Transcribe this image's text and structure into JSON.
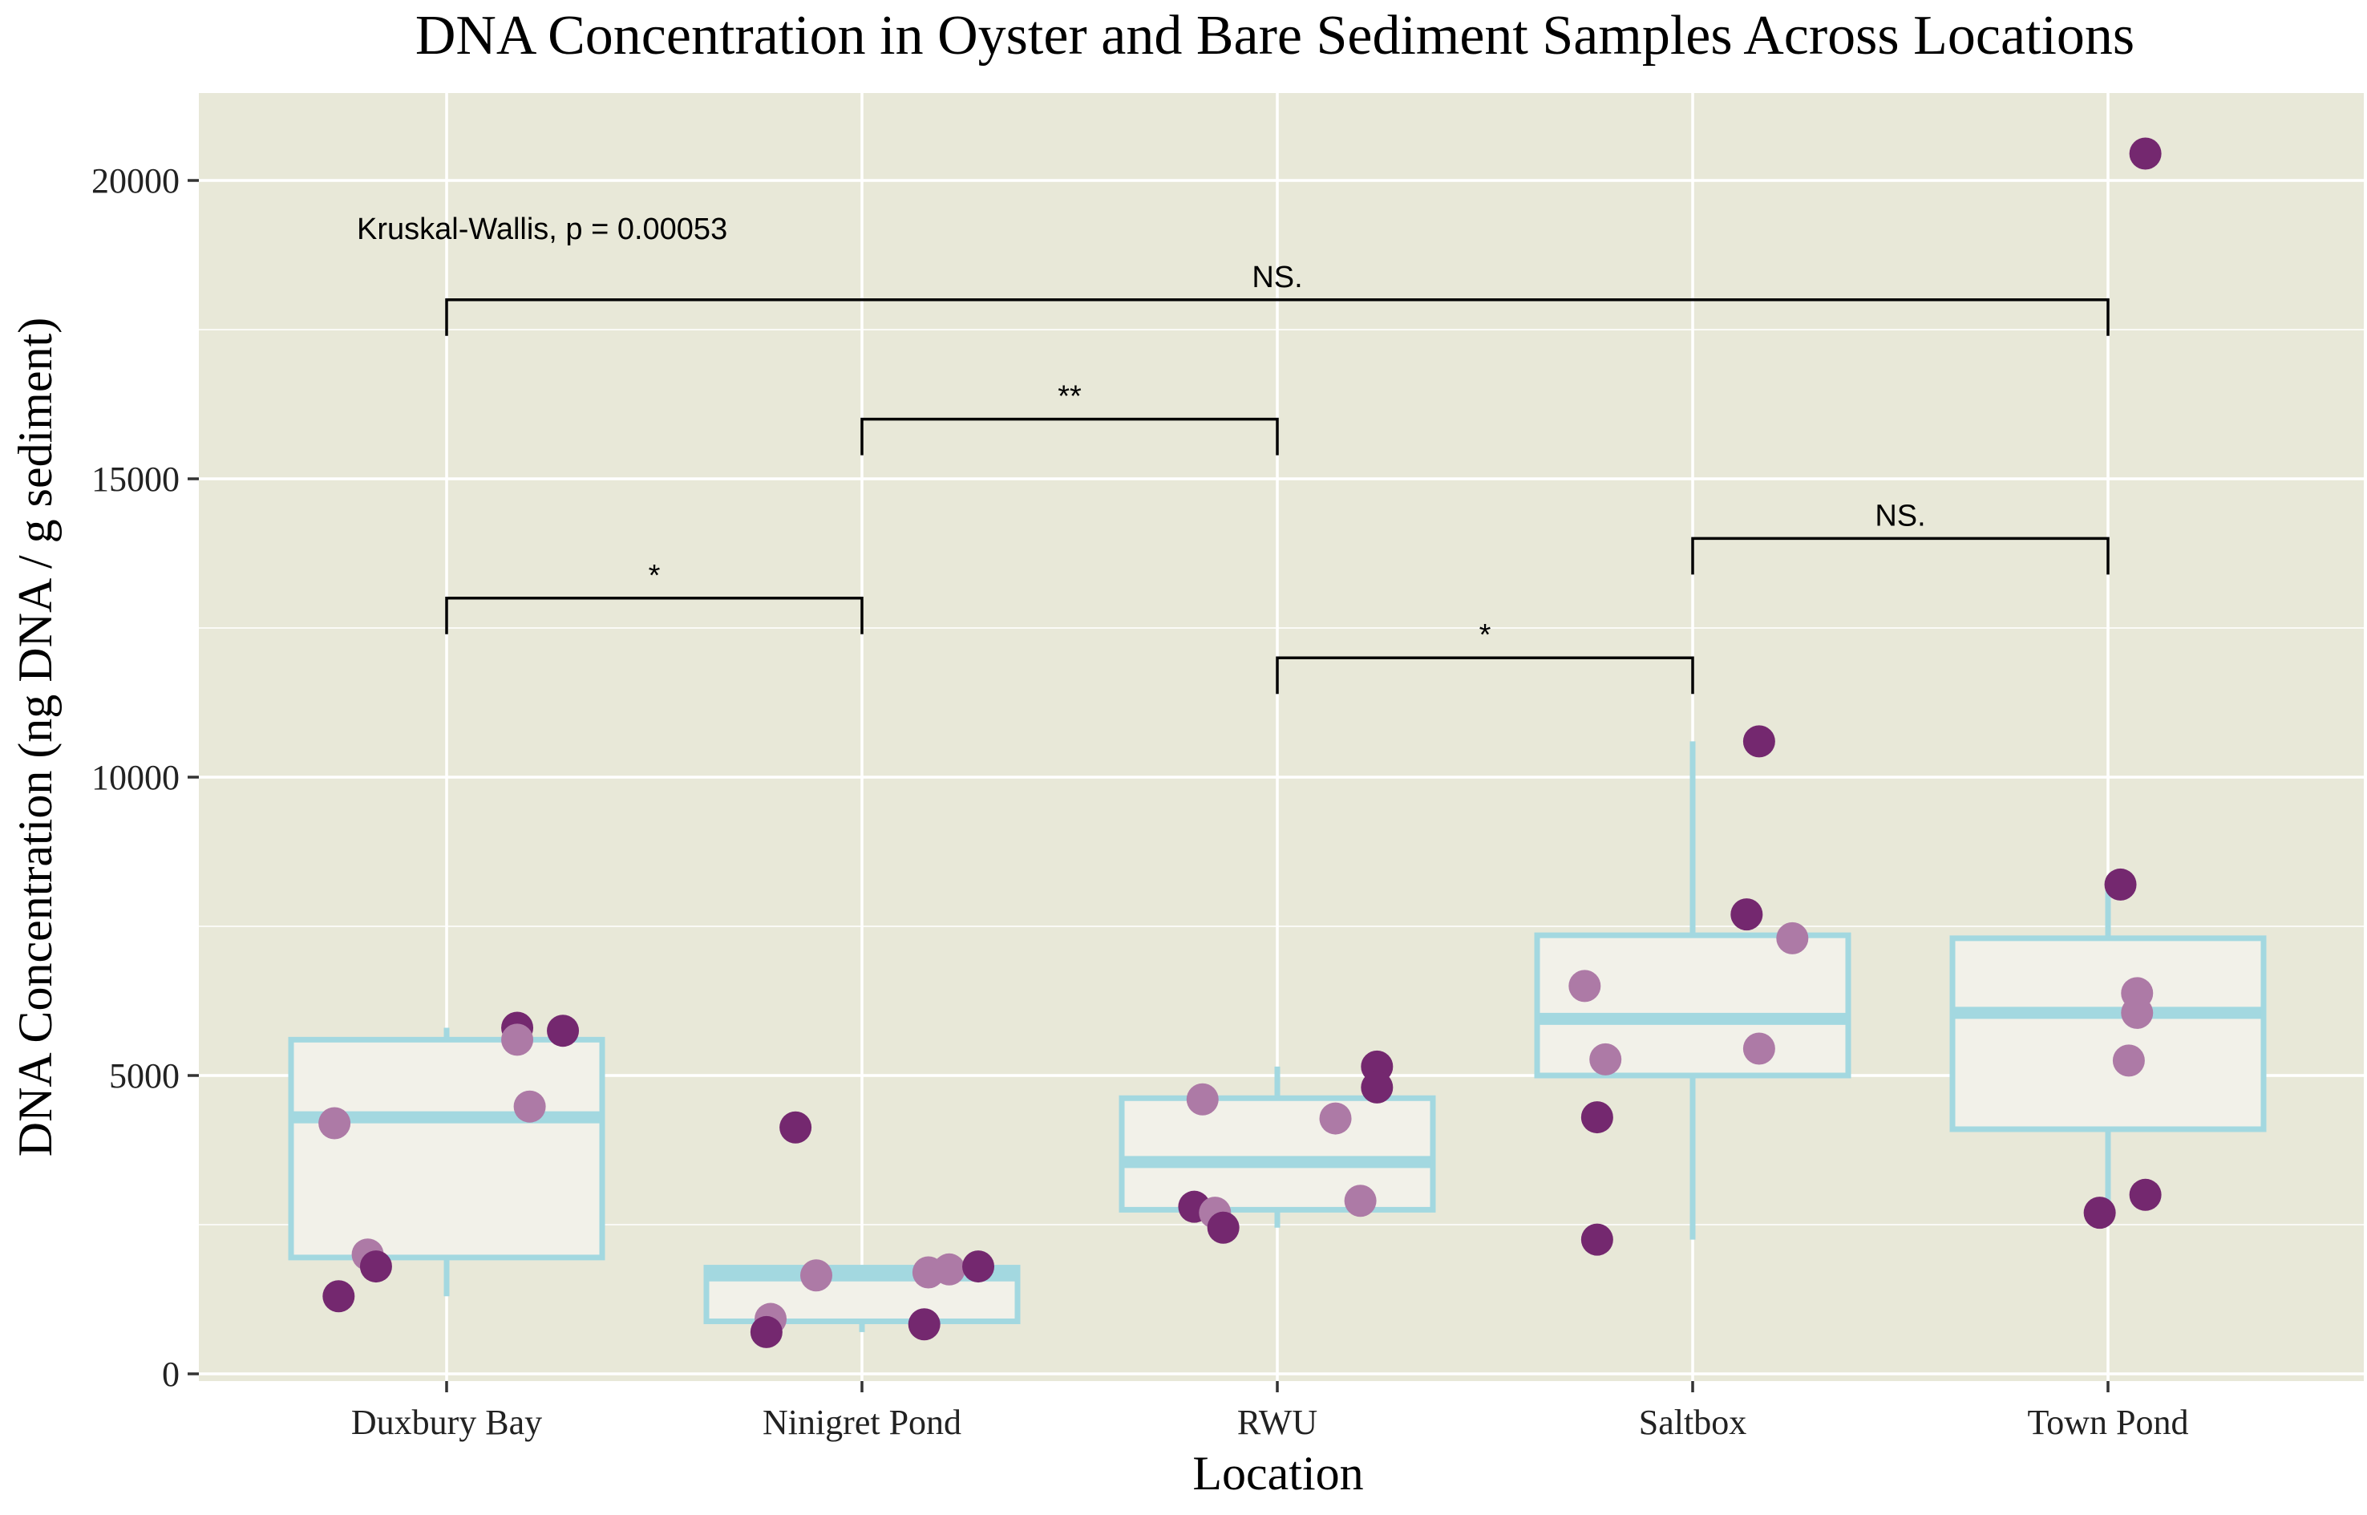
{
  "chart_data": {
    "type": "box",
    "title": "DNA Concentration in Oyster and Bare Sediment Samples Across Locations",
    "xlabel": "Location",
    "ylabel": "DNA Concentration (ng DNA / g sediment)",
    "categories": [
      "Duxbury Bay",
      "Ninigret Pond",
      "RWU",
      "Saltbox",
      "Town Pond"
    ],
    "ylim": [
      -150,
      21500
    ],
    "yticks": [
      0,
      5000,
      10000,
      15000,
      20000
    ],
    "grid": true,
    "legend": "none",
    "boxes": [
      {
        "category": "Duxbury Bay",
        "whisker_low": 1300,
        "q1": 1950,
        "median": 4300,
        "q3": 5600,
        "whisker_high": 5800
      },
      {
        "category": "Ninigret Pond",
        "whisker_low": 700,
        "q1": 880,
        "median": 1650,
        "q3": 1780,
        "whisker_high": 1820
      },
      {
        "category": "RWU",
        "whisker_low": 2450,
        "q1": 2750,
        "median": 3550,
        "q3": 4620,
        "whisker_high": 5150
      },
      {
        "category": "Saltbox",
        "whisker_low": 2250,
        "q1": 5000,
        "median": 5950,
        "q3": 7350,
        "whisker_high": 10600
      },
      {
        "category": "Town Pond",
        "whisker_low": 2700,
        "q1": 4100,
        "median": 6050,
        "q3": 7300,
        "whisker_high": 8200
      }
    ],
    "points": [
      {
        "category": "Duxbury Bay",
        "dx": -0.27,
        "y": 4200,
        "kind": "light"
      },
      {
        "category": "Duxbury Bay",
        "dx": -0.19,
        "y": 2000,
        "kind": "light"
      },
      {
        "category": "Duxbury Bay",
        "dx": -0.17,
        "y": 1800,
        "kind": "dark"
      },
      {
        "category": "Duxbury Bay",
        "dx": -0.26,
        "y": 1300,
        "kind": "dark"
      },
      {
        "category": "Duxbury Bay",
        "dx": 0.17,
        "y": 5800,
        "kind": "dark"
      },
      {
        "category": "Duxbury Bay",
        "dx": 0.17,
        "y": 5600,
        "kind": "light"
      },
      {
        "category": "Duxbury Bay",
        "dx": 0.28,
        "y": 5750,
        "kind": "dark"
      },
      {
        "category": "Duxbury Bay",
        "dx": 0.2,
        "y": 4480,
        "kind": "light"
      },
      {
        "category": "Ninigret Pond",
        "dx": -0.16,
        "y": 4130,
        "kind": "dark"
      },
      {
        "category": "Ninigret Pond",
        "dx": -0.11,
        "y": 1650,
        "kind": "light"
      },
      {
        "category": "Ninigret Pond",
        "dx": -0.22,
        "y": 920,
        "kind": "light"
      },
      {
        "category": "Ninigret Pond",
        "dx": -0.23,
        "y": 700,
        "kind": "dark"
      },
      {
        "category": "Ninigret Pond",
        "dx": 0.16,
        "y": 1700,
        "kind": "light"
      },
      {
        "category": "Ninigret Pond",
        "dx": 0.21,
        "y": 1750,
        "kind": "light"
      },
      {
        "category": "Ninigret Pond",
        "dx": 0.28,
        "y": 1800,
        "kind": "dark"
      },
      {
        "category": "Ninigret Pond",
        "dx": 0.15,
        "y": 830,
        "kind": "dark"
      },
      {
        "category": "RWU",
        "dx": -0.18,
        "y": 4600,
        "kind": "light"
      },
      {
        "category": "RWU",
        "dx": -0.2,
        "y": 2800,
        "kind": "dark"
      },
      {
        "category": "RWU",
        "dx": -0.15,
        "y": 2700,
        "kind": "light"
      },
      {
        "category": "RWU",
        "dx": -0.13,
        "y": 2450,
        "kind": "dark"
      },
      {
        "category": "RWU",
        "dx": 0.14,
        "y": 4280,
        "kind": "light"
      },
      {
        "category": "RWU",
        "dx": 0.24,
        "y": 5150,
        "kind": "dark"
      },
      {
        "category": "RWU",
        "dx": 0.24,
        "y": 4800,
        "kind": "dark"
      },
      {
        "category": "RWU",
        "dx": 0.2,
        "y": 2900,
        "kind": "light"
      },
      {
        "category": "Saltbox",
        "dx": -0.26,
        "y": 6500,
        "kind": "light"
      },
      {
        "category": "Saltbox",
        "dx": -0.21,
        "y": 5270,
        "kind": "light"
      },
      {
        "category": "Saltbox",
        "dx": -0.23,
        "y": 4300,
        "kind": "dark"
      },
      {
        "category": "Saltbox",
        "dx": -0.23,
        "y": 2250,
        "kind": "dark"
      },
      {
        "category": "Saltbox",
        "dx": 0.16,
        "y": 10600,
        "kind": "dark"
      },
      {
        "category": "Saltbox",
        "dx": 0.13,
        "y": 7700,
        "kind": "dark"
      },
      {
        "category": "Saltbox",
        "dx": 0.24,
        "y": 7300,
        "kind": "light"
      },
      {
        "category": "Saltbox",
        "dx": 0.16,
        "y": 5450,
        "kind": "light"
      },
      {
        "category": "Town Pond",
        "dx": 0.03,
        "y": 8200,
        "kind": "dark"
      },
      {
        "category": "Town Pond",
        "dx": 0.09,
        "y": 20450,
        "kind": "dark"
      },
      {
        "category": "Town Pond",
        "dx": 0.07,
        "y": 6380,
        "kind": "light"
      },
      {
        "category": "Town Pond",
        "dx": 0.07,
        "y": 6050,
        "kind": "light"
      },
      {
        "category": "Town Pond",
        "dx": 0.05,
        "y": 5250,
        "kind": "light"
      },
      {
        "category": "Town Pond",
        "dx": -0.02,
        "y": 2700,
        "kind": "dark"
      },
      {
        "category": "Town Pond",
        "dx": 0.09,
        "y": 3000,
        "kind": "dark"
      }
    ],
    "comparisons": [
      {
        "from": "Duxbury Bay",
        "to": "Town Pond",
        "y": 18000,
        "label": "NS."
      },
      {
        "from": "Ninigret Pond",
        "to": "RWU",
        "y": 16000,
        "label": "**"
      },
      {
        "from": "Duxbury Bay",
        "to": "Ninigret Pond",
        "y": 13000,
        "label": "*"
      },
      {
        "from": "Saltbox",
        "to": "Town Pond",
        "y": 14000,
        "label": "NS."
      },
      {
        "from": "RWU",
        "to": "Saltbox",
        "y": 12000,
        "label": "*"
      }
    ],
    "annotation": "Kruskal-Wallis, p = 0.00053",
    "colors": {
      "panel": "#e8e8d8",
      "grid": "#ffffff",
      "box_fill": "#f2f1e9",
      "box_stroke": "#a3d8e0",
      "point_dark": "#74286f",
      "point_light": "#ad7aa6",
      "bracket": "#000000"
    }
  }
}
